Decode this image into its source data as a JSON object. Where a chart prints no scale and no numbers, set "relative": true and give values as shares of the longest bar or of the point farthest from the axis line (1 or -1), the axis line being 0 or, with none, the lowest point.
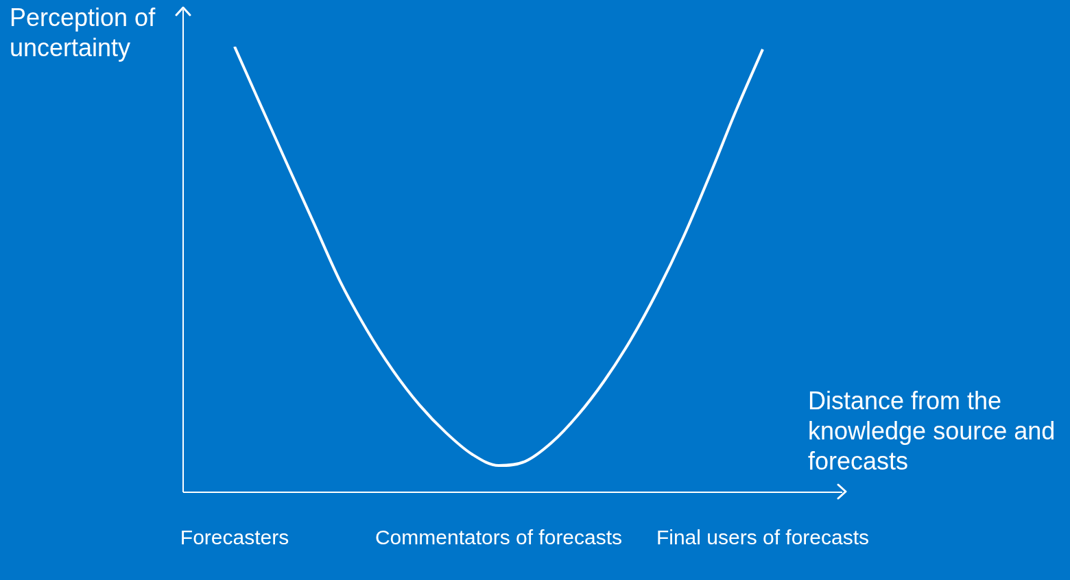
{
  "chart_data": {
    "type": "line",
    "relative": true,
    "xlabel": "Distance from the knowledge source and forecasts",
    "ylabel": "Perception of uncertainty",
    "categories": [
      "Forecasters",
      null,
      null,
      null,
      null,
      null,
      null,
      null,
      null,
      null,
      "Commentators of forecasts",
      null,
      null,
      null,
      null,
      null,
      null,
      null,
      null,
      null,
      "Final users of forecasts"
    ],
    "series": [
      {
        "color": "#ffffff",
        "values": [
          1,
          0.867,
          0.735,
          0.604,
          0.473,
          0.365,
          0.273,
          0.196,
          0.134,
          0.085,
          0.06,
          0.069,
          0.111,
          0.173,
          0.25,
          0.342,
          0.45,
          0.573,
          0.712,
          0.858,
          0.994
        ]
      }
    ],
    "grid": false,
    "legend": false,
    "marker": "none",
    "line_style": "solid"
  }
}
